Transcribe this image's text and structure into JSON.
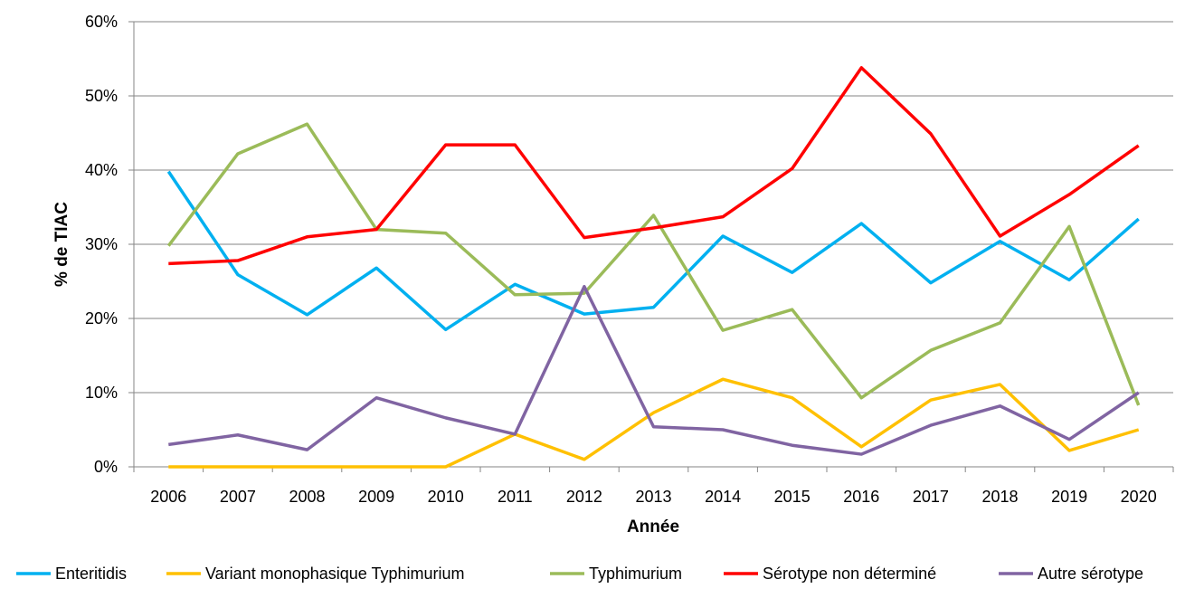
{
  "chart_data": {
    "type": "line",
    "title": "",
    "xlabel": "Année",
    "ylabel": "% de TIAC",
    "ylim": [
      0,
      60
    ],
    "yticks": [
      "0%",
      "10%",
      "20%",
      "30%",
      "40%",
      "50%",
      "60%"
    ],
    "ytick_values": [
      0,
      10,
      20,
      30,
      40,
      50,
      60
    ],
    "grid": true,
    "legend_position": "bottom",
    "x": [
      "2006",
      "2007",
      "2008",
      "2009",
      "2010",
      "2011",
      "2012",
      "2013",
      "2014",
      "2015",
      "2016",
      "2017",
      "2018",
      "2019",
      "2020"
    ],
    "series": [
      {
        "name": "Enteritidis",
        "color": "#00b0f0",
        "values": [
          39.8,
          25.9,
          20.5,
          26.8,
          18.5,
          24.6,
          20.6,
          21.5,
          31.1,
          26.2,
          32.8,
          24.8,
          30.4,
          25.2,
          33.4
        ]
      },
      {
        "name": "Variant monophasique Typhimurium",
        "color": "#ffc000",
        "values": [
          0,
          0,
          0,
          0,
          0,
          4.4,
          1.0,
          7.3,
          11.8,
          9.3,
          2.7,
          9.0,
          11.1,
          2.2,
          5.0
        ]
      },
      {
        "name": "Typhimurium",
        "color": "#9bbb59",
        "values": [
          29.8,
          42.2,
          46.2,
          32.0,
          31.5,
          23.2,
          23.4,
          33.9,
          18.4,
          21.2,
          9.3,
          15.7,
          19.4,
          32.4,
          8.3
        ]
      },
      {
        "name": "Sérotype non déterminé",
        "color": "#ff0000",
        "values": [
          27.4,
          27.8,
          31.0,
          32.0,
          43.4,
          43.4,
          30.9,
          32.2,
          33.7,
          40.2,
          53.8,
          44.9,
          31.1,
          36.7,
          43.3
        ]
      },
      {
        "name": "Autre sérotype",
        "color": "#8064a2",
        "values": [
          3.0,
          4.3,
          2.3,
          9.3,
          6.6,
          4.4,
          24.3,
          5.4,
          5.0,
          2.9,
          1.7,
          5.6,
          8.2,
          3.7,
          10.0
        ]
      }
    ]
  }
}
